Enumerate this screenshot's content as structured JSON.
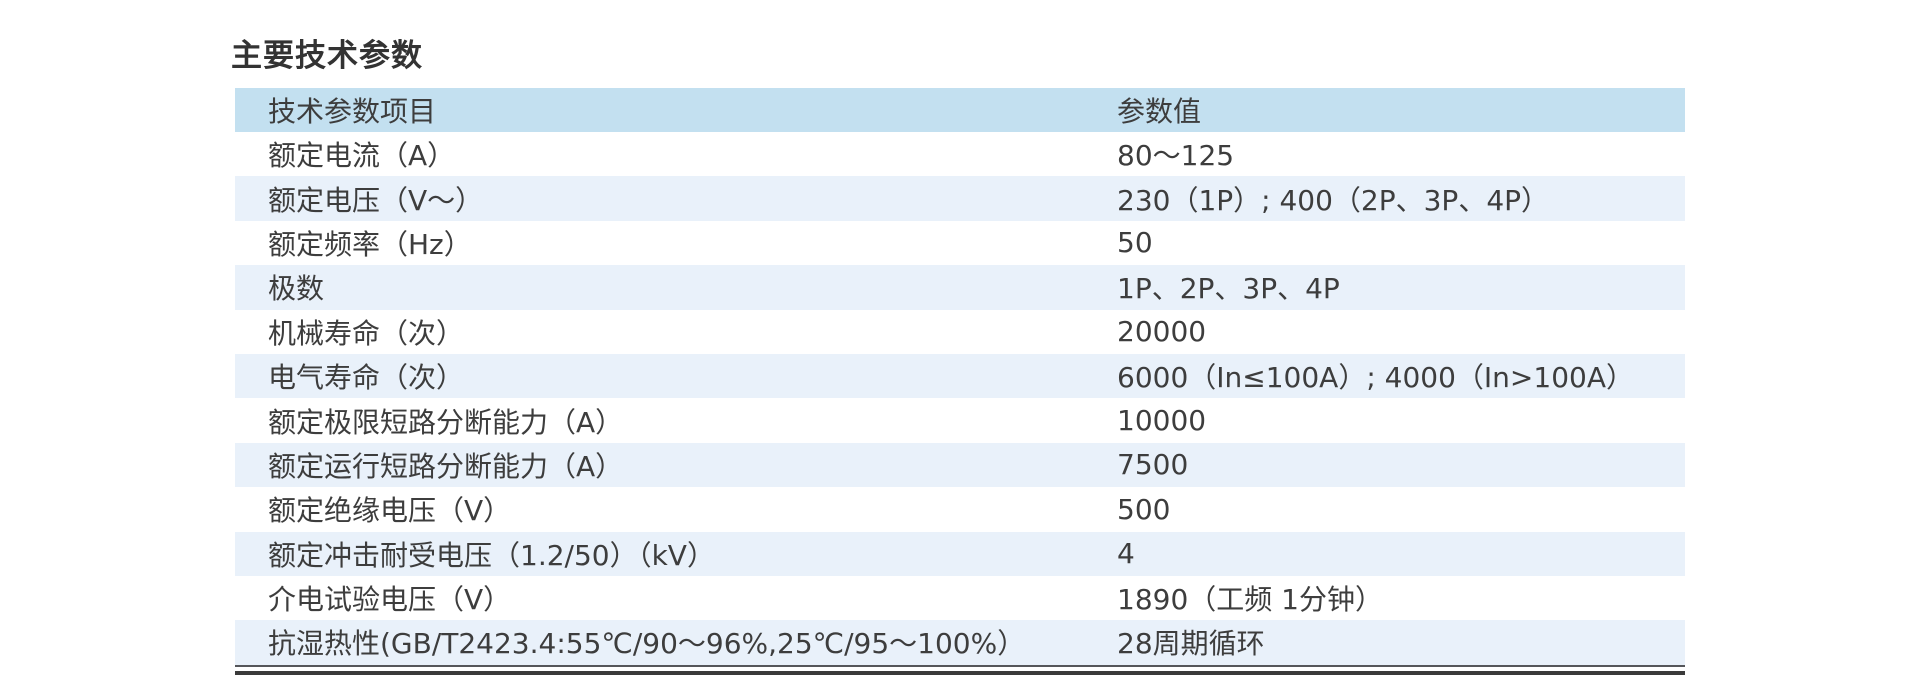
{
  "page_title": "主要技术参数",
  "table": {
    "headers": {
      "param": "技术参数项目",
      "value": "参数值"
    },
    "rows": [
      {
        "param": "额定电流（A）",
        "value": "80～125"
      },
      {
        "param": "额定电压（V～）",
        "value": "230（1P）; 400（2P、3P、4P）"
      },
      {
        "param": "额定频率（Hz）",
        "value": "50"
      },
      {
        "param": "极数",
        "value": "1P、2P、3P、4P"
      },
      {
        "param": "机械寿命（次）",
        "value": "20000"
      },
      {
        "param": "电气寿命（次）",
        "value": "6000（In≤100A）; 4000（In>100A）"
      },
      {
        "param": "额定极限短路分断能力（A）",
        "value": "10000"
      },
      {
        "param": "额定运行短路分断能力（A）",
        "value": "7500"
      },
      {
        "param": "额定绝缘电压（V）",
        "value": "500"
      },
      {
        "param": "额定冲击耐受电压（1.2/50）（kV）",
        "value": "4"
      },
      {
        "param": "介电试验电压（V）",
        "value": "1890（工频 1分钟）"
      },
      {
        "param": "抗湿热性(GB/T2423.4:55℃/90～96%,25℃/95～100%）",
        "value": "28周期循环"
      }
    ]
  },
  "colors": {
    "header_bg": "#c3e0f0",
    "row_alt_bg": "#e9f1fa",
    "text": "#3d3d3d",
    "rule_thin": "#55565a",
    "rule_thick": "#3a3a3a"
  }
}
